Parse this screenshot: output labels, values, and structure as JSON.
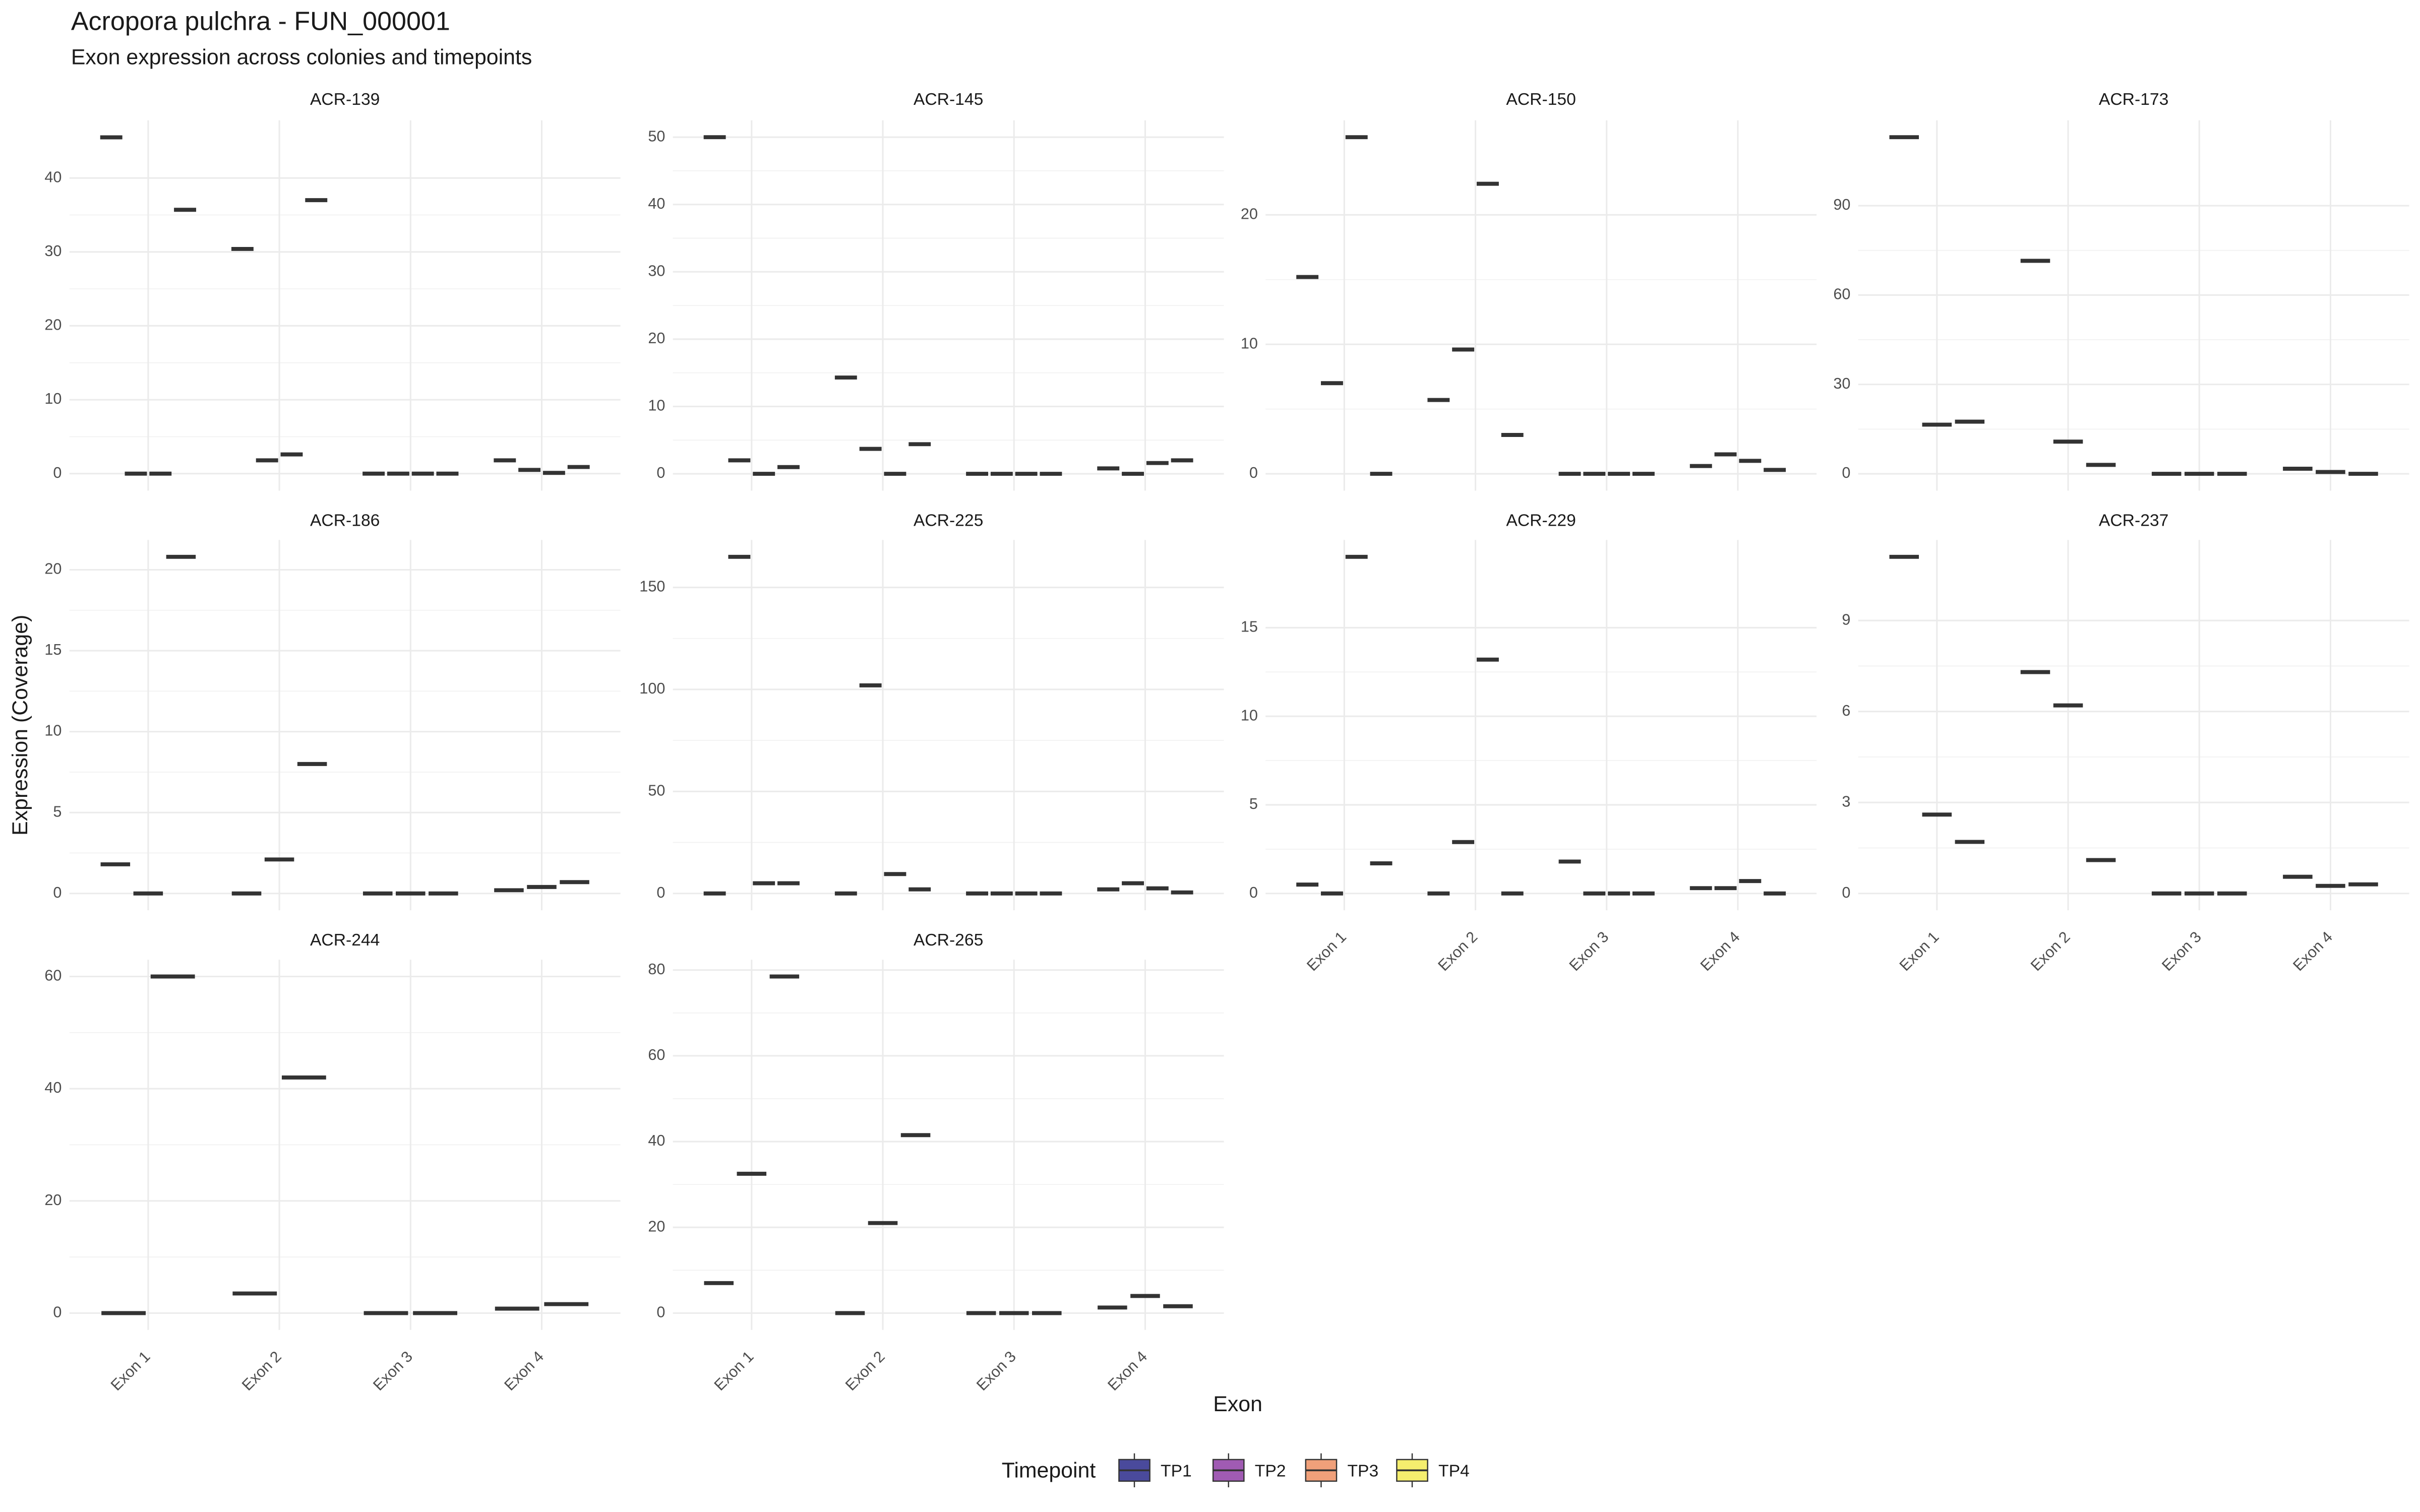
{
  "chart_data": {
    "type": "box",
    "title": "Acropora pulchra - FUN_000001",
    "subtitle": "Exon expression across colonies and timepoints",
    "xlabel": "Exon",
    "ylabel": "Expression (Coverage)",
    "legend_title": "Timepoint",
    "categories": [
      "Exon 1",
      "Exon 2",
      "Exon 3",
      "Exon 4"
    ],
    "grid": true,
    "legend_position": "bottom",
    "series": [
      {
        "name": "TP1",
        "color": "#4a4a9c"
      },
      {
        "name": "TP2",
        "color": "#a05bb3"
      },
      {
        "name": "TP3",
        "color": "#f0a07a"
      },
      {
        "name": "TP4",
        "color": "#f5ee6e"
      }
    ],
    "panels": [
      {
        "title": "ACR-139",
        "ylim": [
          -2.3,
          47.8
        ],
        "yticks": [
          0,
          10,
          20,
          30,
          40
        ],
        "series": [
          {
            "values": [
              45.5,
              30.4,
              0,
              1.8
            ]
          },
          {
            "values": [
              0,
              1.8,
              0,
              0.5
            ]
          },
          {
            "values": [
              0,
              2.6,
              0,
              0.1
            ]
          },
          {
            "values": [
              35.7,
              37,
              0,
              0.9
            ]
          }
        ]
      },
      {
        "title": "ACR-145",
        "ylim": [
          -2.5,
          52.5
        ],
        "yticks": [
          0,
          10,
          20,
          30,
          40,
          50
        ],
        "series": [
          {
            "values": [
              50,
              14.3,
              0,
              0.8
            ]
          },
          {
            "values": [
              2,
              3.7,
              0,
              0
            ]
          },
          {
            "values": [
              0,
              0,
              0,
              1.6
            ]
          },
          {
            "values": [
              1,
              4.4,
              0,
              2
            ]
          }
        ]
      },
      {
        "title": "ACR-150",
        "ylim": [
          -1.3,
          27.3
        ],
        "yticks": [
          0,
          10,
          20
        ],
        "series": [
          {
            "values": [
              15.2,
              5.7,
              0,
              0.6
            ]
          },
          {
            "values": [
              7,
              9.6,
              0,
              1.5
            ]
          },
          {
            "values": [
              26,
              22.4,
              0,
              1
            ]
          },
          {
            "values": [
              0,
              3,
              0,
              0.3
            ]
          }
        ]
      },
      {
        "title": "ACR-173",
        "ylim": [
          -5.65,
          118.65
        ],
        "yticks": [
          0,
          30,
          60,
          90
        ],
        "series": [
          {
            "values": [
              113,
              71.5,
              0,
              1.7
            ]
          },
          {
            "values": [
              16.5,
              10.8,
              0,
              0.6
            ]
          },
          {
            "values": [
              17.5,
              3,
              0,
              0
            ]
          }
        ]
      },
      {
        "title": "ACR-186",
        "ylim": [
          -1.04,
          21.84
        ],
        "yticks": [
          0,
          5,
          10,
          15,
          20
        ],
        "series": [
          {
            "values": [
              1.8,
              0,
              0,
              0.2
            ]
          },
          {
            "values": [
              0,
              2.1,
              0,
              0.4
            ]
          },
          {
            "values": [
              20.8,
              8,
              0,
              0.7
            ]
          }
        ]
      },
      {
        "title": "ACR-225",
        "ylim": [
          -8.25,
          173.25
        ],
        "yticks": [
          0,
          50,
          100,
          150
        ],
        "series": [
          {
            "values": [
              0,
              0,
              0,
              2
            ]
          },
          {
            "values": [
              165,
              102,
              0,
              5
            ]
          },
          {
            "values": [
              5,
              9.5,
              0,
              2.5
            ]
          },
          {
            "values": [
              5,
              2,
              0,
              0.5
            ]
          }
        ]
      },
      {
        "title": "ACR-229",
        "ylim": [
          -0.95,
          19.95
        ],
        "yticks": [
          0,
          5,
          10,
          15
        ],
        "series": [
          {
            "values": [
              0.5,
              0,
              1.8,
              0.3
            ]
          },
          {
            "values": [
              0,
              2.9,
              0,
              0.3
            ]
          },
          {
            "values": [
              19,
              13.2,
              0,
              0.7
            ]
          },
          {
            "values": [
              1.7,
              0,
              0,
              0
            ]
          }
        ]
      },
      {
        "title": "ACR-237",
        "ylim": [
          -0.555,
          11.655
        ],
        "yticks": [
          0,
          3,
          6,
          9
        ],
        "series": [
          {
            "values": [
              11.1,
              7.3,
              0,
              0.55
            ]
          },
          {
            "values": [
              2.6,
              6.2,
              0,
              0.25
            ]
          },
          {
            "values": [
              1.7,
              1.1,
              0,
              0.3
            ]
          }
        ]
      },
      {
        "title": "ACR-244",
        "ylim": [
          -3,
          63
        ],
        "yticks": [
          0,
          20,
          40,
          60
        ],
        "series": [
          {
            "values": [
              0,
              3.5,
              0,
              0.8
            ]
          },
          {
            "values": [
              60,
              42,
              0,
              1.6
            ]
          }
        ]
      },
      {
        "title": "ACR-265",
        "ylim": [
          -3.925,
          82.425
        ],
        "yticks": [
          0,
          20,
          40,
          60,
          80
        ],
        "series": [
          {
            "values": [
              7,
              0,
              0,
              1.3
            ]
          },
          {
            "values": [
              32.5,
              21,
              0,
              4
            ]
          },
          {
            "values": [
              78.5,
              41.5,
              0,
              1.6
            ]
          }
        ]
      }
    ]
  }
}
